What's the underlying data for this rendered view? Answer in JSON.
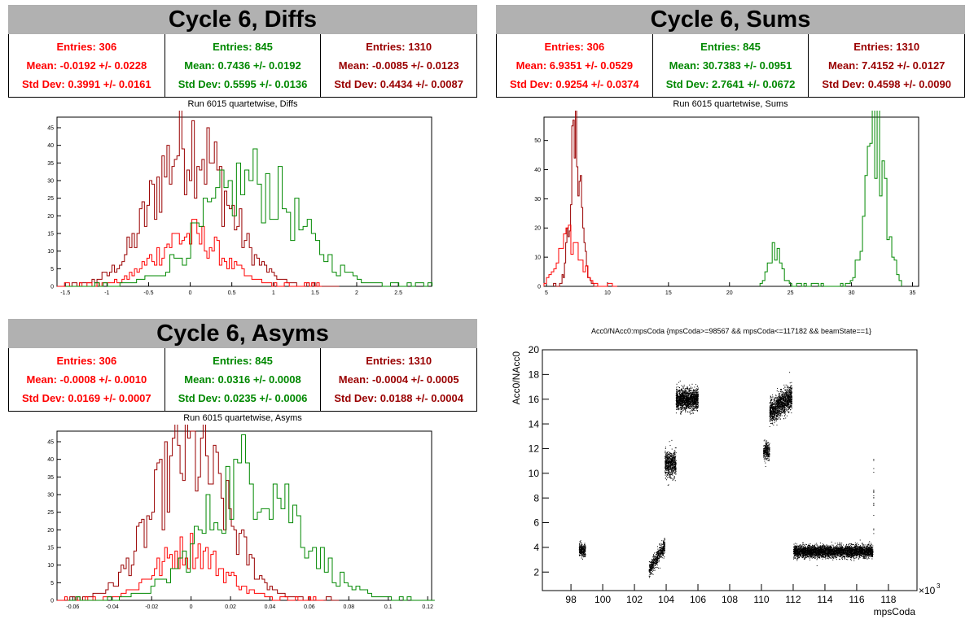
{
  "colors": {
    "series_red": "#ff0000",
    "series_green": "#008800",
    "series_darkred": "#990000",
    "title_bg": "#b1b1b1",
    "points": "#000000"
  },
  "panels": {
    "diffs": {
      "title": "Cycle 6, Diffs",
      "stats": [
        {
          "entries": "Entries: 306",
          "mean": "Mean: -0.0192 +/- 0.0228",
          "std": "Std Dev: 0.3991 +/- 0.0161"
        },
        {
          "entries": "Entries: 845",
          "mean": "Mean: 0.7436 +/- 0.0192",
          "std": "Std Dev: 0.5595 +/- 0.0136"
        },
        {
          "entries": "Entries: 1310",
          "mean": "Mean: -0.0085 +/- 0.0123",
          "std": "Std Dev: 0.4434 +/- 0.0087"
        }
      ],
      "subtitle": "Run 6015 quartetwise, Diffs"
    },
    "sums": {
      "title": "Cycle 6, Sums",
      "stats": [
        {
          "entries": "Entries: 306",
          "mean": "Mean: 6.9351 +/- 0.0529",
          "std": "Std Dev: 0.9254 +/- 0.0374"
        },
        {
          "entries": "Entries: 845",
          "mean": "Mean: 30.7383 +/- 0.0951",
          "std": "Std Dev: 2.7641 +/- 0.0672"
        },
        {
          "entries": "Entries: 1310",
          "mean": "Mean: 7.4152 +/- 0.0127",
          "std": "Std Dev: 0.4598 +/- 0.0090"
        }
      ],
      "subtitle": "Run 6015 quartetwise, Sums"
    },
    "asyms": {
      "title": "Cycle 6, Asyms",
      "stats": [
        {
          "entries": "Entries: 306",
          "mean": "Mean: -0.0008 +/- 0.0010",
          "std": "Std Dev: 0.0169 +/- 0.0007"
        },
        {
          "entries": "Entries: 845",
          "mean": "Mean: 0.0316 +/- 0.0008",
          "std": "Std Dev: 0.0235 +/- 0.0006"
        },
        {
          "entries": "Entries: 1310",
          "mean": "Mean: -0.0004 +/- 0.0005",
          "std": "Std Dev: 0.0188 +/- 0.0004"
        }
      ],
      "subtitle": "Run 6015 quartetwise, Asyms"
    }
  },
  "chart_data": [
    {
      "id": "diffs",
      "type": "histogram",
      "xlim": [
        -1.6,
        2.9
      ],
      "ylim": [
        0,
        48
      ],
      "xticks": [
        -1.5,
        -1,
        -0.5,
        0,
        0.5,
        1,
        1.5,
        2,
        2.5
      ],
      "xtick_labels": [
        "-1.5",
        "-1",
        "-0.5",
        "0",
        "0.5",
        "1",
        "1.5",
        "2",
        "2.5"
      ],
      "yticks": [
        0,
        5,
        10,
        15,
        20,
        25,
        30,
        35,
        40,
        45
      ],
      "ytick_labels": [
        "0",
        "5",
        "10",
        "15",
        "20",
        "25",
        "30",
        "35",
        "40",
        "45"
      ],
      "series": [
        {
          "color_key": "series_darkred",
          "mean": -0.0085,
          "std": 0.4434,
          "peak": 46,
          "bin": 0.03
        },
        {
          "color_key": "series_red",
          "mean": -0.0192,
          "std": 0.3991,
          "peak": 16,
          "bin": 0.03
        },
        {
          "color_key": "series_green",
          "mean": 0.7436,
          "std": 0.5595,
          "peak": 33,
          "bin": 0.05
        }
      ]
    },
    {
      "id": "sums",
      "type": "histogram",
      "xlim": [
        4.8,
        35.5
      ],
      "ylim": [
        0,
        58
      ],
      "xticks": [
        5,
        10,
        15,
        20,
        25,
        30,
        35
      ],
      "xtick_labels": [
        "5",
        "10",
        "15",
        "20",
        "25",
        "30",
        "35"
      ],
      "yticks": [
        0,
        10,
        20,
        30,
        40,
        50
      ],
      "ytick_labels": [
        "0",
        "10",
        "20",
        "30",
        "40",
        "50"
      ],
      "series": [
        {
          "color_key": "series_darkred",
          "mean": 7.4152,
          "std": 0.4598,
          "peak": 56,
          "bin": 0.1
        },
        {
          "color_key": "series_red",
          "mean": 6.9351,
          "std": 0.9254,
          "peak": 17,
          "bin": 0.2
        },
        {
          "color_key": "series_green",
          "bimodal": [
            {
              "mean": 23.8,
              "std": 0.5,
              "peak": 15
            },
            {
              "mean": 32.0,
              "std": 0.8,
              "peak": 56
            }
          ],
          "bin": 0.2,
          "xmin": 22.5,
          "xmax": 34.0
        }
      ]
    },
    {
      "id": "asyms",
      "type": "histogram",
      "xlim": [
        -0.068,
        0.122
      ],
      "ylim": [
        0,
        48
      ],
      "xticks": [
        -0.06,
        -0.04,
        -0.02,
        0,
        0.02,
        0.04,
        0.06,
        0.08,
        0.1,
        0.12
      ],
      "xtick_labels": [
        "-0.06",
        "-0.04",
        "-0.02",
        "0",
        "0.02",
        "0.04",
        "0.06",
        "0.08",
        "0.1",
        "0.12"
      ],
      "yticks": [
        0,
        5,
        10,
        15,
        20,
        25,
        30,
        35,
        40,
        45
      ],
      "ytick_labels": [
        "0",
        "5",
        "10",
        "15",
        "20",
        "25",
        "30",
        "35",
        "40",
        "45"
      ],
      "series": [
        {
          "color_key": "series_darkred",
          "mean": -0.0004,
          "std": 0.0188,
          "peak": 46,
          "bin": 0.0013
        },
        {
          "color_key": "series_red",
          "mean": -0.0008,
          "std": 0.0169,
          "peak": 16,
          "bin": 0.0013
        },
        {
          "color_key": "series_green",
          "mean": 0.0316,
          "std": 0.0235,
          "peak": 40,
          "bin": 0.002
        }
      ]
    },
    {
      "id": "scatter",
      "type": "scatter",
      "title": "Acc0/NAcc0:mpsCoda {mpsCoda>=98567 && mpsCoda<=117182 && beamState==1}",
      "xlabel": "mpsCoda",
      "ylabel": "Acc0/NAcc0",
      "x_multiplier_label": "×10",
      "x_multiplier_exp": "3",
      "xlim": [
        96.2,
        119.8
      ],
      "ylim": [
        0.5,
        20
      ],
      "xticks": [
        98,
        100,
        102,
        104,
        106,
        108,
        110,
        112,
        114,
        116,
        118
      ],
      "xtick_labels": [
        "98",
        "100",
        "102",
        "104",
        "106",
        "108",
        "110",
        "112",
        "114",
        "116",
        "118"
      ],
      "yticks": [
        2,
        4,
        6,
        8,
        10,
        12,
        14,
        16,
        18,
        20
      ],
      "ytick_labels": [
        "2",
        "4",
        "6",
        "8",
        "10",
        "12",
        "14",
        "16",
        "18",
        "20"
      ],
      "clusters": [
        {
          "x0": 98.5,
          "x1": 98.9,
          "ymean": 3.8,
          "yspread": 0.4,
          "n": 250
        },
        {
          "x0": 102.9,
          "x1": 103.9,
          "ymean": 3.2,
          "yspread": 0.5,
          "slope": 1.0,
          "n": 500
        },
        {
          "x0": 103.9,
          "x1": 104.6,
          "ymean": 10.8,
          "yspread": 0.9,
          "n": 600
        },
        {
          "x0": 104.6,
          "x1": 106.0,
          "ymean": 16.0,
          "yspread": 0.7,
          "n": 1400
        },
        {
          "x0": 110.1,
          "x1": 110.5,
          "ymean": 11.8,
          "yspread": 0.6,
          "n": 250
        },
        {
          "x0": 110.5,
          "x1": 111.9,
          "ymean": 15.6,
          "yspread": 0.8,
          "slope": 0.7,
          "n": 1300
        },
        {
          "x0": 112.0,
          "x1": 117.0,
          "ymean": 3.7,
          "yspread": 0.4,
          "n": 3600
        }
      ]
    }
  ]
}
